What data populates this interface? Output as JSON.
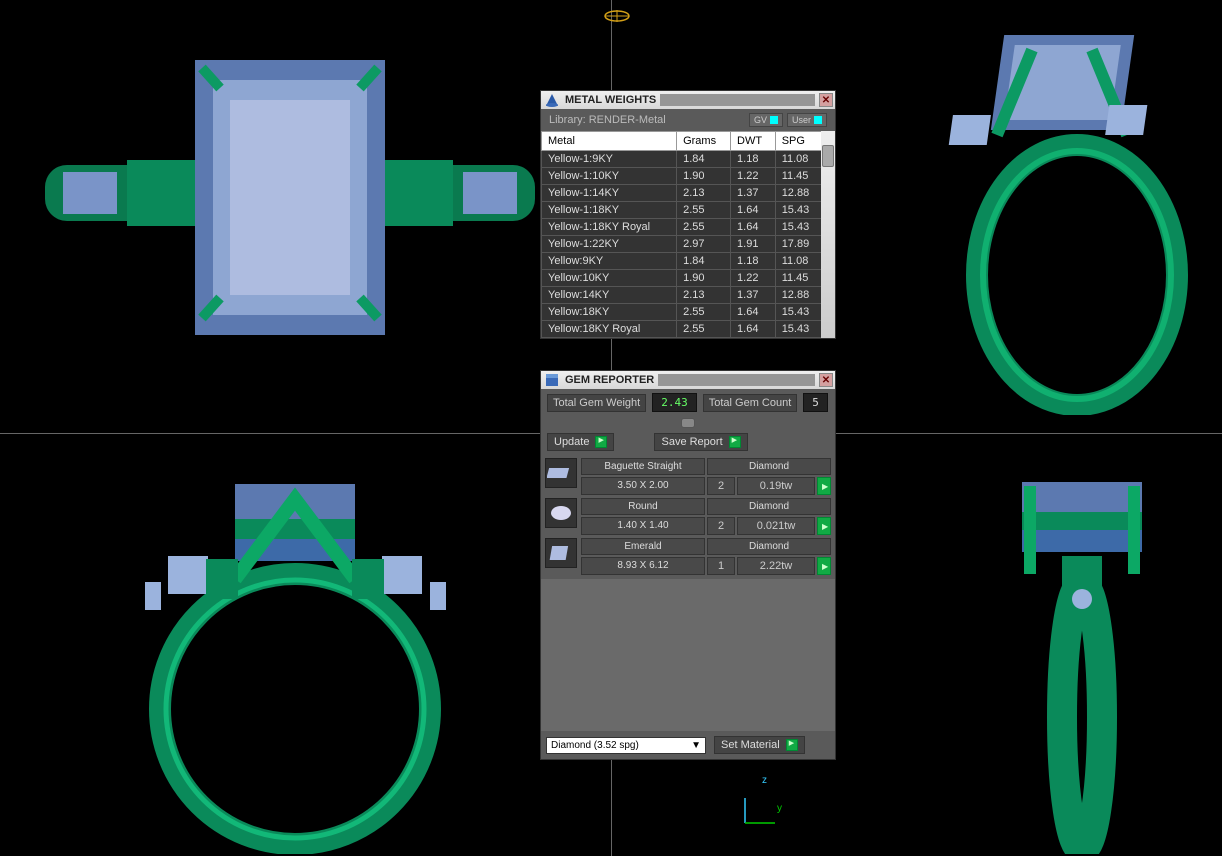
{
  "viewports": {
    "grid_color": "#666666",
    "background": "#000000"
  },
  "gizmo_top_color": "#d4a017",
  "axis": {
    "z_label": "z",
    "y_label": "y",
    "z_color": "#33ccff",
    "y_color": "#00cc00"
  },
  "ring_colors": {
    "metal": "#0a8a5a",
    "metal_light": "#1ac080",
    "stone": "#6a8cc4",
    "stone_light": "#9bb3dd"
  },
  "metal_panel": {
    "title": "METAL WEIGHTS",
    "library_label": "Library: RENDER-Metal",
    "gv_btn": "GV",
    "user_btn": "User",
    "columns": [
      "Metal",
      "Grams",
      "DWT",
      "SPG"
    ],
    "rows": [
      [
        "Yellow-1:9KY",
        "1.84",
        "1.18",
        "11.08"
      ],
      [
        "Yellow-1:10KY",
        "1.90",
        "1.22",
        "11.45"
      ],
      [
        "Yellow-1:14KY",
        "2.13",
        "1.37",
        "12.88"
      ],
      [
        "Yellow-1:18KY",
        "2.55",
        "1.64",
        "15.43"
      ],
      [
        "Yellow-1:18KY Royal",
        "2.55",
        "1.64",
        "15.43"
      ],
      [
        "Yellow-1:22KY",
        "2.97",
        "1.91",
        "17.89"
      ],
      [
        "Yellow:9KY",
        "1.84",
        "1.18",
        "11.08"
      ],
      [
        "Yellow:10KY",
        "1.90",
        "1.22",
        "11.45"
      ],
      [
        "Yellow:14KY",
        "2.13",
        "1.37",
        "12.88"
      ],
      [
        "Yellow:18KY",
        "2.55",
        "1.64",
        "15.43"
      ],
      [
        "Yellow:18KY Royal",
        "2.55",
        "1.64",
        "15.43"
      ]
    ]
  },
  "gem_panel": {
    "title": "GEM REPORTER",
    "total_weight_label": "Total Gem Weight",
    "total_weight_value": "2.43",
    "total_count_label": "Total Gem Count",
    "total_count_value": "5",
    "update_btn": "Update",
    "save_btn": "Save Report",
    "gems": [
      {
        "cut": "Baguette Straight",
        "material": "Diamond",
        "size": "3.50 X 2.00",
        "qty": "2",
        "tw": "0.19tw",
        "thumb": "baguette"
      },
      {
        "cut": "Round",
        "material": "Diamond",
        "size": "1.40 X 1.40",
        "qty": "2",
        "tw": "0.021tw",
        "thumb": "round"
      },
      {
        "cut": "Emerald",
        "material": "Diamond",
        "size": "8.93 X 6.12",
        "qty": "1",
        "tw": "2.22tw",
        "thumb": "emerald"
      }
    ],
    "dropdown_value": "Diamond   (3.52 spg)",
    "set_material_btn": "Set Material"
  }
}
